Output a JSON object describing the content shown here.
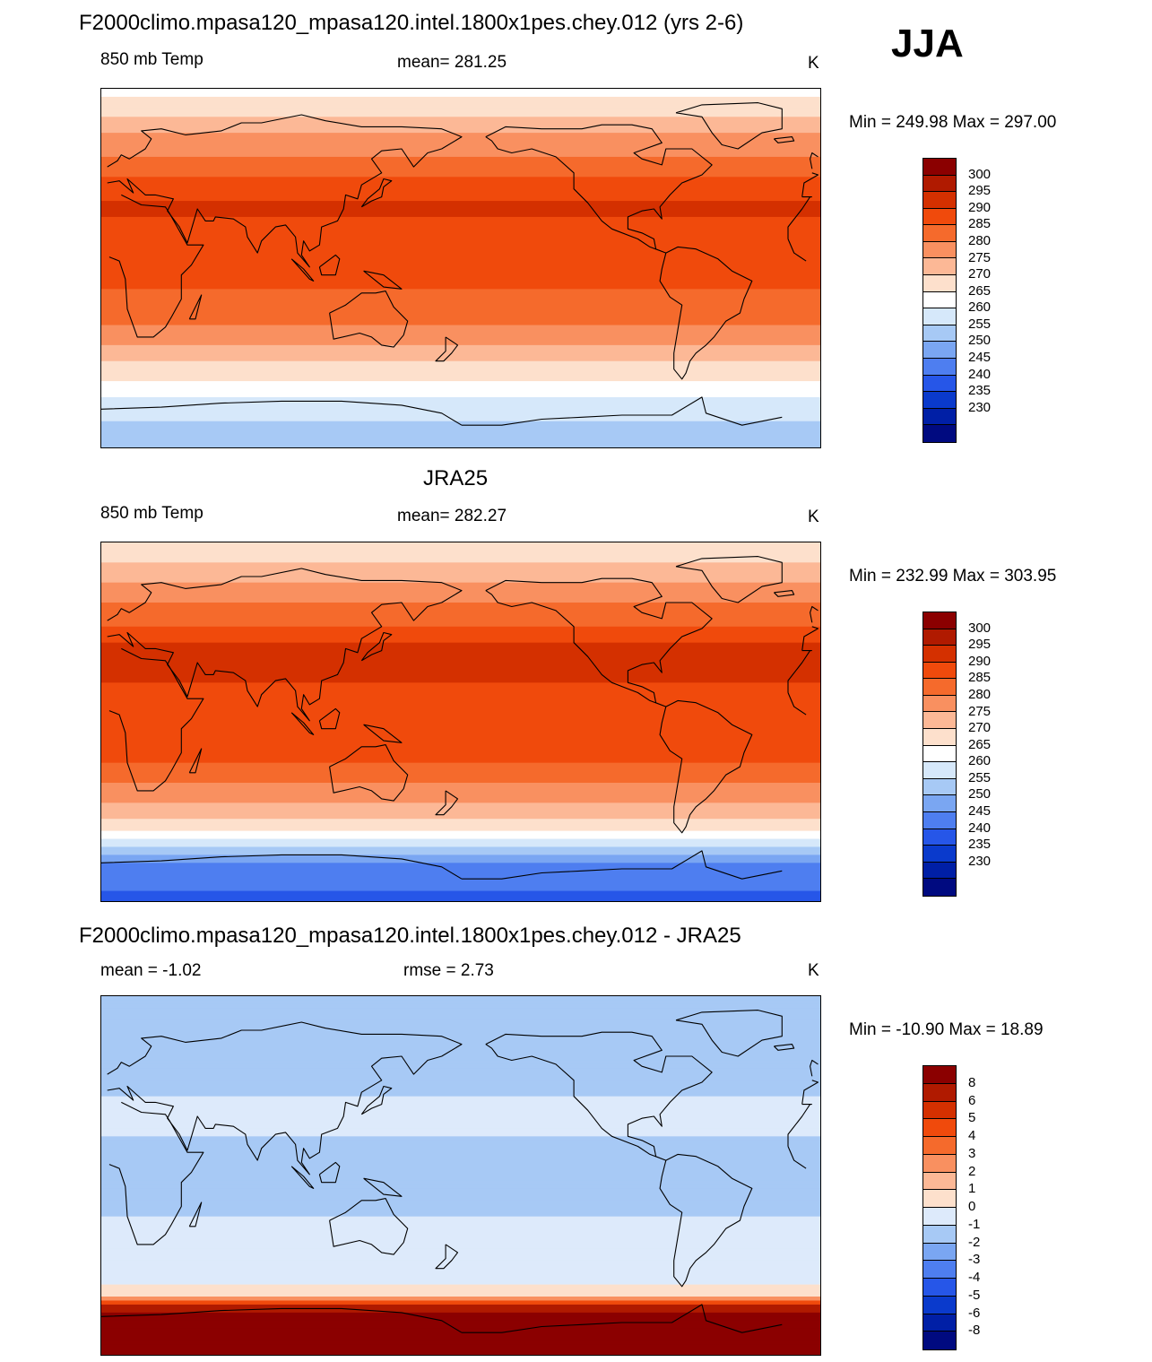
{
  "season": "JJA",
  "chart_data": [
    {
      "type": "heatmap",
      "title": "F2000climo.mpasa120_mpasa120.intel.1800x1pes.chey.012 (yrs 2-6)",
      "left_label": "850 mb Temp",
      "center_label": "mean= 281.25",
      "units": "K",
      "minmax": "Min = 249.98 Max = 297.00",
      "min": 249.98,
      "max": 297.0,
      "mean": 281.25,
      "variable": "T850",
      "colorbar_levels": [
        "300",
        "295",
        "290",
        "285",
        "280",
        "275",
        "270",
        "265",
        "260",
        "255",
        "250",
        "245",
        "240",
        "235",
        "230"
      ],
      "colorbar_colors": [
        "#8b0000",
        "#b01a00",
        "#d43000",
        "#f04a0c",
        "#f56a2c",
        "#f99060",
        "#fcb896",
        "#fde0cc",
        "#ffffff",
        "#d6e8fa",
        "#a7c9f5",
        "#7aa6f2",
        "#4e7ef0",
        "#2656e8",
        "#0a3acc",
        "#001fa6",
        "#000a80"
      ],
      "zonal_profile": [
        [
          90,
          262
        ],
        [
          80,
          268
        ],
        [
          70,
          274
        ],
        [
          60,
          278
        ],
        [
          50,
          283
        ],
        [
          40,
          288
        ],
        [
          30,
          291
        ],
        [
          20,
          288
        ],
        [
          10,
          286
        ],
        [
          0,
          286
        ],
        [
          -10,
          285
        ],
        [
          -20,
          284
        ],
        [
          -30,
          279
        ],
        [
          -40,
          274
        ],
        [
          -50,
          268
        ],
        [
          -60,
          262
        ],
        [
          -70,
          256
        ],
        [
          -90,
          252
        ]
      ]
    },
    {
      "type": "heatmap",
      "title": "JRA25",
      "left_label": "850 mb Temp",
      "center_label": "mean= 282.27",
      "units": "K",
      "minmax": "Min = 232.99 Max = 303.95",
      "min": 232.99,
      "max": 303.95,
      "mean": 282.27,
      "variable": "T850",
      "colorbar_levels": [
        "300",
        "295",
        "290",
        "285",
        "280",
        "275",
        "270",
        "265",
        "260",
        "255",
        "250",
        "245",
        "240",
        "235",
        "230"
      ],
      "colorbar_colors": [
        "#8b0000",
        "#b01a00",
        "#d43000",
        "#f04a0c",
        "#f56a2c",
        "#f99060",
        "#fcb896",
        "#fde0cc",
        "#ffffff",
        "#d6e8fa",
        "#a7c9f5",
        "#7aa6f2",
        "#4e7ef0",
        "#2656e8",
        "#0a3acc",
        "#001fa6",
        "#000a80"
      ],
      "zonal_profile": [
        [
          90,
          266
        ],
        [
          80,
          270
        ],
        [
          70,
          275
        ],
        [
          60,
          280
        ],
        [
          50,
          284
        ],
        [
          40,
          290
        ],
        [
          30,
          292
        ],
        [
          20,
          290
        ],
        [
          10,
          289
        ],
        [
          0,
          288
        ],
        [
          -10,
          287
        ],
        [
          -20,
          285
        ],
        [
          -30,
          280
        ],
        [
          -40,
          275
        ],
        [
          -50,
          268
        ],
        [
          -60,
          258
        ],
        [
          -70,
          245
        ],
        [
          -90,
          238
        ]
      ]
    },
    {
      "type": "heatmap",
      "title": "F2000climo.mpasa120_mpasa120.intel.1800x1pes.chey.012 - JRA25",
      "left_label": "mean =  -1.02",
      "center_label": "rmse =   2.73",
      "units": "K",
      "minmax": "Min = -10.90 Max =  18.89",
      "min": -10.9,
      "max": 18.89,
      "mean": -1.02,
      "rmse": 2.73,
      "variable": "T850 difference",
      "colorbar_levels": [
        "8",
        "6",
        "5",
        "4",
        "3",
        "2",
        "1",
        "0",
        "-1",
        "-2",
        "-3",
        "-4",
        "-5",
        "-6",
        "-8"
      ],
      "colorbar_colors": [
        "#8b0000",
        "#b01a00",
        "#d43000",
        "#f04a0c",
        "#f56a2c",
        "#f99060",
        "#fcb896",
        "#fde0cc",
        "#ddeafb",
        "#a7c9f5",
        "#7aa6f2",
        "#4e7ef0",
        "#2656e8",
        "#0a3acc",
        "#001fa6",
        "#000a80"
      ],
      "zonal_profile": [
        [
          90,
          -1
        ],
        [
          80,
          -1.5
        ],
        [
          70,
          -1.5
        ],
        [
          60,
          -2
        ],
        [
          50,
          -1.5
        ],
        [
          40,
          -1
        ],
        [
          30,
          -1
        ],
        [
          20,
          -1
        ],
        [
          10,
          -1.5
        ],
        [
          0,
          -1
        ],
        [
          -10,
          -1.5
        ],
        [
          -20,
          -1
        ],
        [
          -30,
          -1
        ],
        [
          -40,
          -1
        ],
        [
          -50,
          -1
        ],
        [
          -60,
          1
        ],
        [
          -65,
          6
        ],
        [
          -70,
          9
        ],
        [
          -90,
          10
        ]
      ]
    }
  ]
}
